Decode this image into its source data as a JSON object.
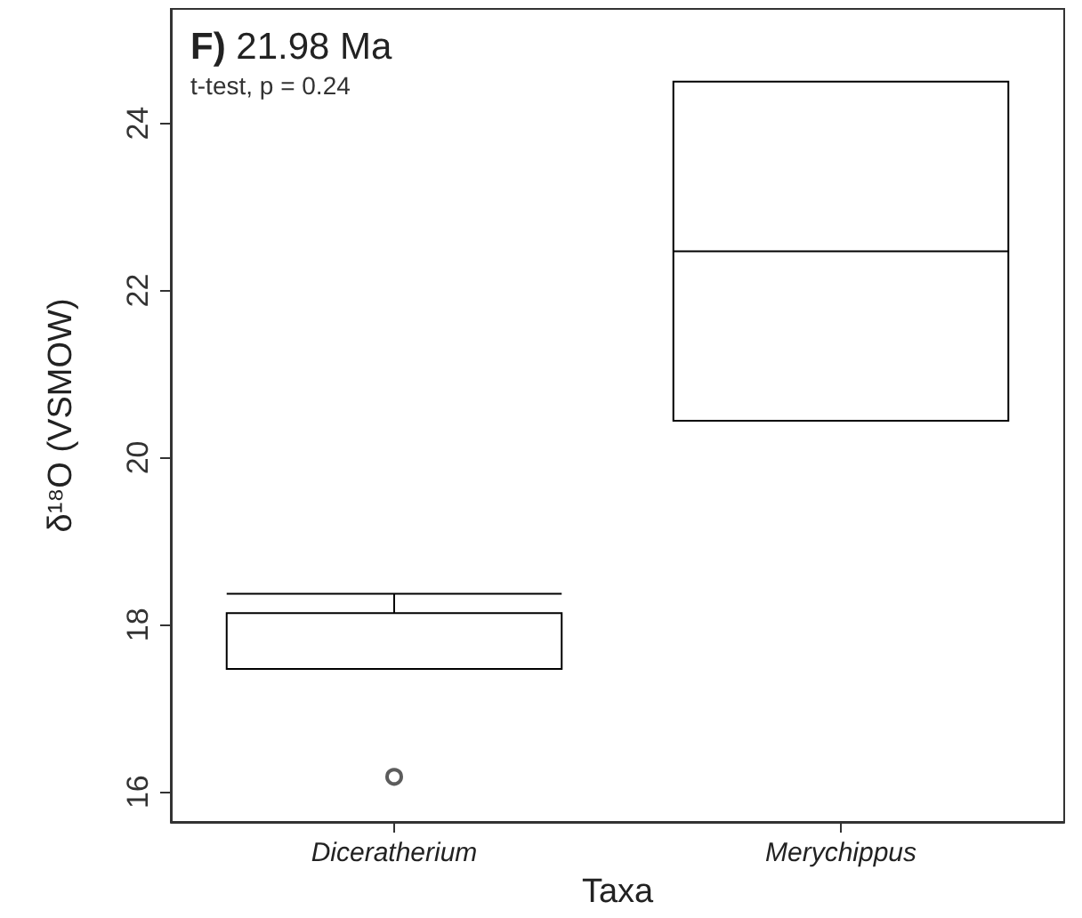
{
  "chart_data": {
    "type": "box",
    "title": "F) 21.98 Ma",
    "subtitle": "t-test, p = 0.24",
    "xlabel": "Taxa",
    "ylabel": "δ¹⁸O (VSMOW)",
    "categories": [
      "Diceratherium",
      "Merychippus"
    ],
    "boxes": [
      {
        "low": 17.47,
        "q1": 17.47,
        "median": 18.14,
        "q3": 18.14,
        "high": 18.37,
        "outliers": [
          16.18
        ]
      },
      {
        "low": 20.44,
        "q1": 20.44,
        "median": 22.47,
        "q3": 24.5,
        "high": 24.5
      }
    ],
    "ylim": [
      15.64,
      25.37
    ],
    "yticks": [
      16,
      18,
      20,
      22,
      24
    ]
  }
}
